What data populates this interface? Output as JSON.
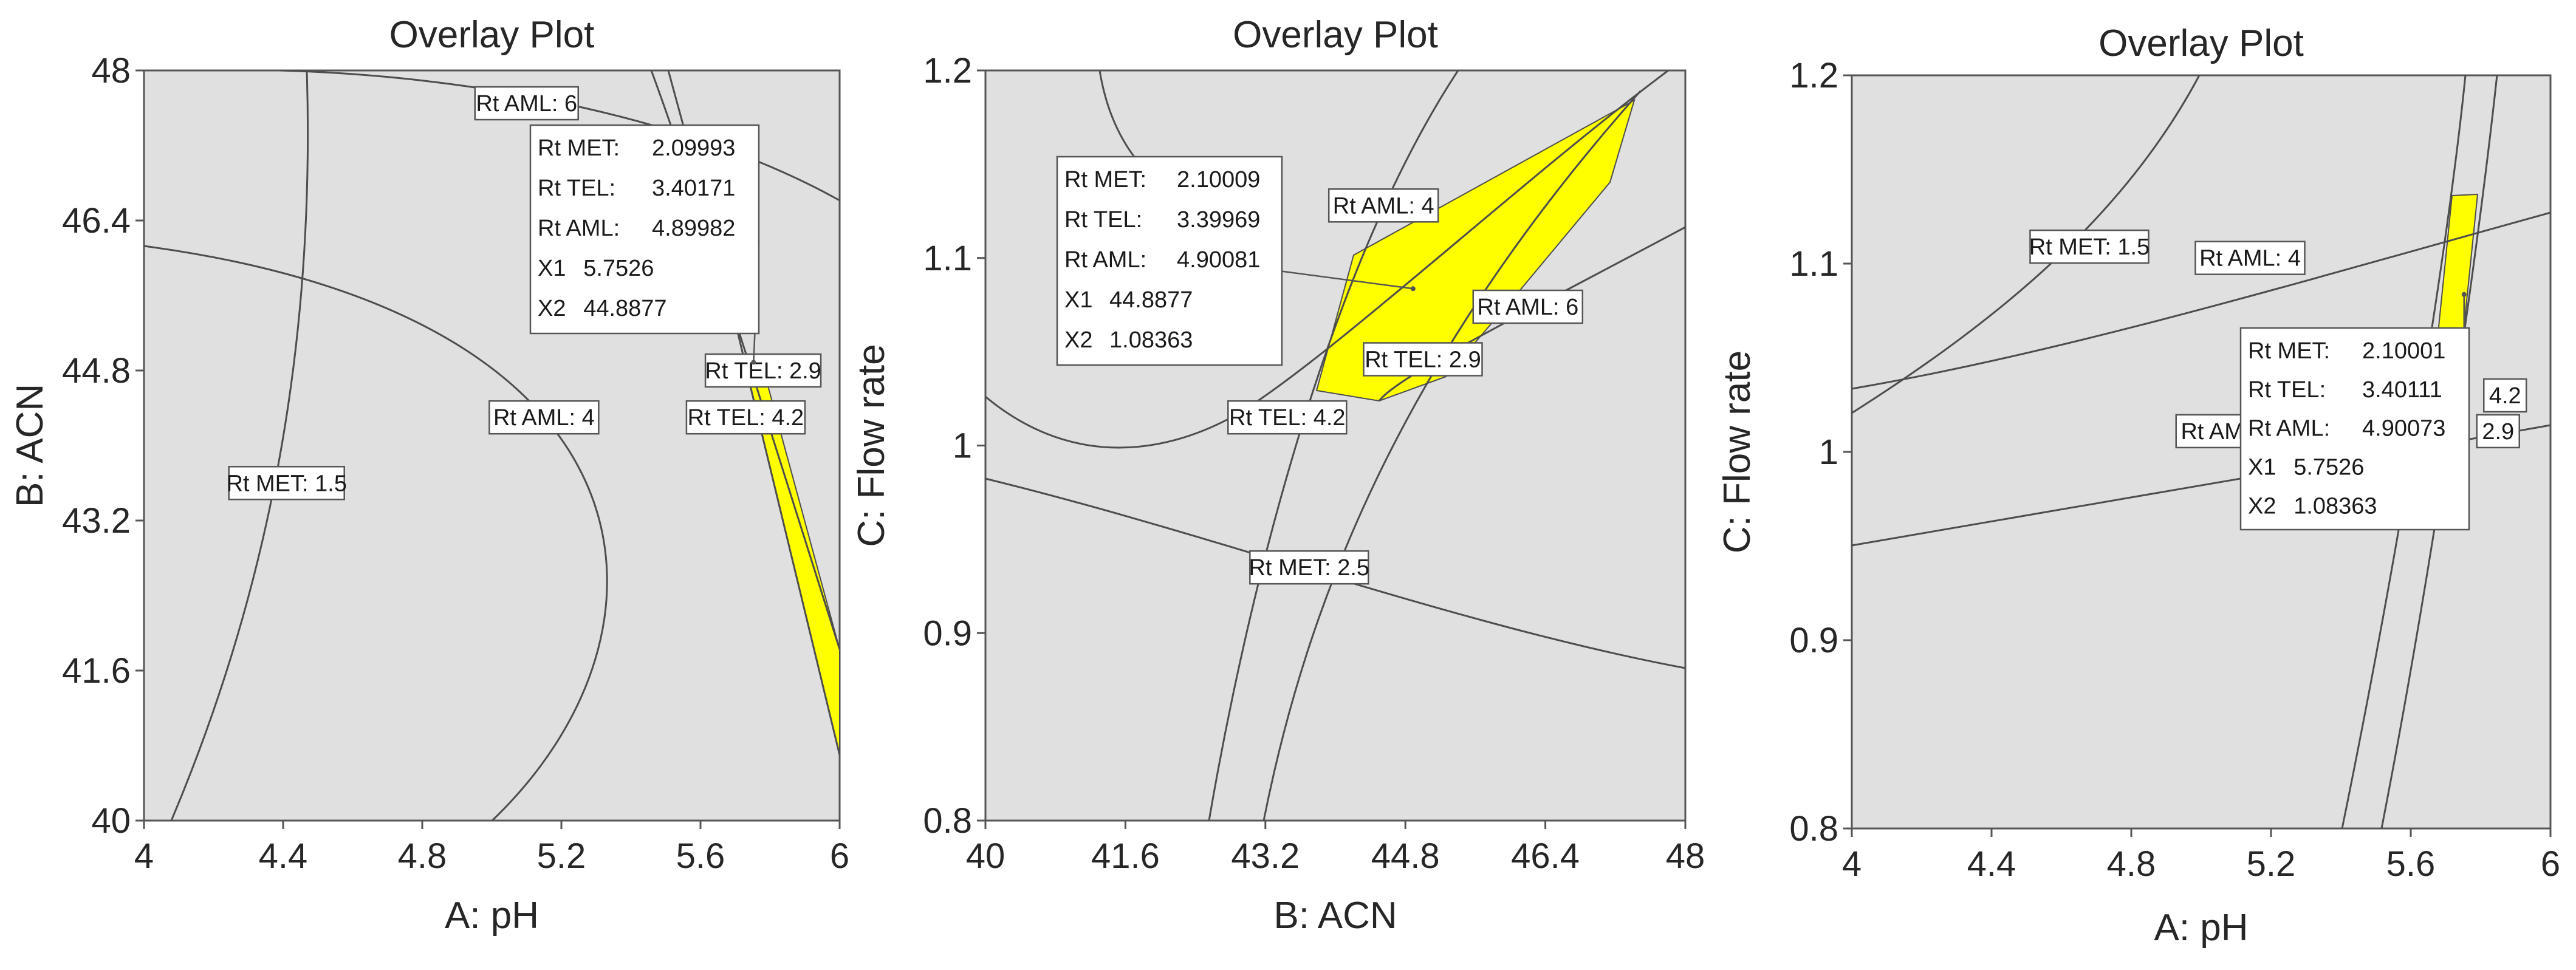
{
  "chart_data": [
    {
      "type": "contour",
      "title": "Overlay Plot",
      "xlabel": "A: pH",
      "ylabel": "B: ACN",
      "xlim": [
        4,
        6
      ],
      "ylim": [
        40,
        48
      ],
      "xticks": [
        "4",
        "4.4",
        "4.8",
        "5.2",
        "5.6",
        "6"
      ],
      "yticks": [
        "40",
        "41.6",
        "43.2",
        "44.8",
        "46.4",
        "48"
      ],
      "contour_labels": [
        {
          "text": "Rt AML: 6",
          "x": 5.1,
          "y": 47.65
        },
        {
          "text": "Rt TEL: 2.9",
          "x": 5.78,
          "y": 44.8
        },
        {
          "text": "Rt TEL: 4.2",
          "x": 5.73,
          "y": 44.3
        },
        {
          "text": "Rt AML: 4",
          "x": 5.15,
          "y": 44.3
        },
        {
          "text": "Rt MET: 1.5",
          "x": 4.41,
          "y": 43.6
        }
      ],
      "flag": {
        "x": 5.7526,
        "y": 44.8877,
        "lines": [
          [
            "Rt MET:",
            "2.09993"
          ],
          [
            "Rt TEL:",
            "3.40171"
          ],
          [
            "Rt AML:",
            "4.89982"
          ],
          [
            "X1",
            "5.7526"
          ],
          [
            "X2",
            "44.8877"
          ]
        ]
      },
      "feasible_region_color": "#ffff00",
      "background_color": "#e0e0e0"
    },
    {
      "type": "contour",
      "title": "Overlay Plot",
      "xlabel": "B: ACN",
      "ylabel": "C: Flow rate",
      "xlim": [
        40,
        48
      ],
      "ylim": [
        0.8,
        1.2
      ],
      "xticks": [
        "40",
        "41.6",
        "43.2",
        "44.8",
        "46.4",
        "48"
      ],
      "yticks": [
        "0.8",
        "0.9",
        "1",
        "1.1",
        "1.2"
      ],
      "contour_labels": [
        {
          "text": "Rt AML: 4",
          "x": 44.55,
          "y": 1.128
        },
        {
          "text": "Rt AML: 6",
          "x": 46.2,
          "y": 1.074
        },
        {
          "text": "Rt TEL: 2.9",
          "x": 45.0,
          "y": 1.046
        },
        {
          "text": "Rt TEL: 4.2",
          "x": 43.45,
          "y": 1.015
        },
        {
          "text": "Rt MET: 2.5",
          "x": 43.7,
          "y": 0.935
        }
      ],
      "flag": {
        "x": 44.8877,
        "y": 1.08363,
        "lines": [
          [
            "Rt MET:",
            "2.10009"
          ],
          [
            "Rt TEL:",
            "3.39969"
          ],
          [
            "Rt AML:",
            "4.90081"
          ],
          [
            "X1",
            "44.8877"
          ],
          [
            "X2",
            "1.08363"
          ]
        ]
      },
      "feasible_region_color": "#ffff00",
      "background_color": "#e0e0e0"
    },
    {
      "type": "contour",
      "title": "Overlay Plot",
      "xlabel": "A: pH",
      "ylabel": "C: Flow rate",
      "xlim": [
        4,
        6
      ],
      "ylim": [
        0.8,
        1.2
      ],
      "xticks": [
        "4",
        "4.4",
        "4.8",
        "5.2",
        "5.6",
        "6"
      ],
      "yticks": [
        "0.8",
        "0.9",
        "1",
        "1.1",
        "1.2"
      ],
      "contour_labels": [
        {
          "text": "Rt MET: 1.5",
          "x": 4.68,
          "y": 1.109
        },
        {
          "text": "Rt AML: 4",
          "x": 5.14,
          "y": 1.103
        },
        {
          "text": "Rt AML",
          "x": 5.05,
          "y": 1.011
        },
        {
          "text": "4.2",
          "x": 5.87,
          "y": 1.03
        },
        {
          "text": "2.9",
          "x": 5.85,
          "y": 1.011
        }
      ],
      "flag": {
        "x": 5.7526,
        "y": 1.08363,
        "lines": [
          [
            "Rt MET:",
            "2.10001"
          ],
          [
            "Rt TEL:",
            "3.40111"
          ],
          [
            "Rt AML:",
            "4.90073"
          ],
          [
            "X1",
            "5.7526"
          ],
          [
            "X2",
            "1.08363"
          ]
        ]
      },
      "feasible_region_color": "#ffff00",
      "background_color": "#e0e0e0"
    }
  ]
}
